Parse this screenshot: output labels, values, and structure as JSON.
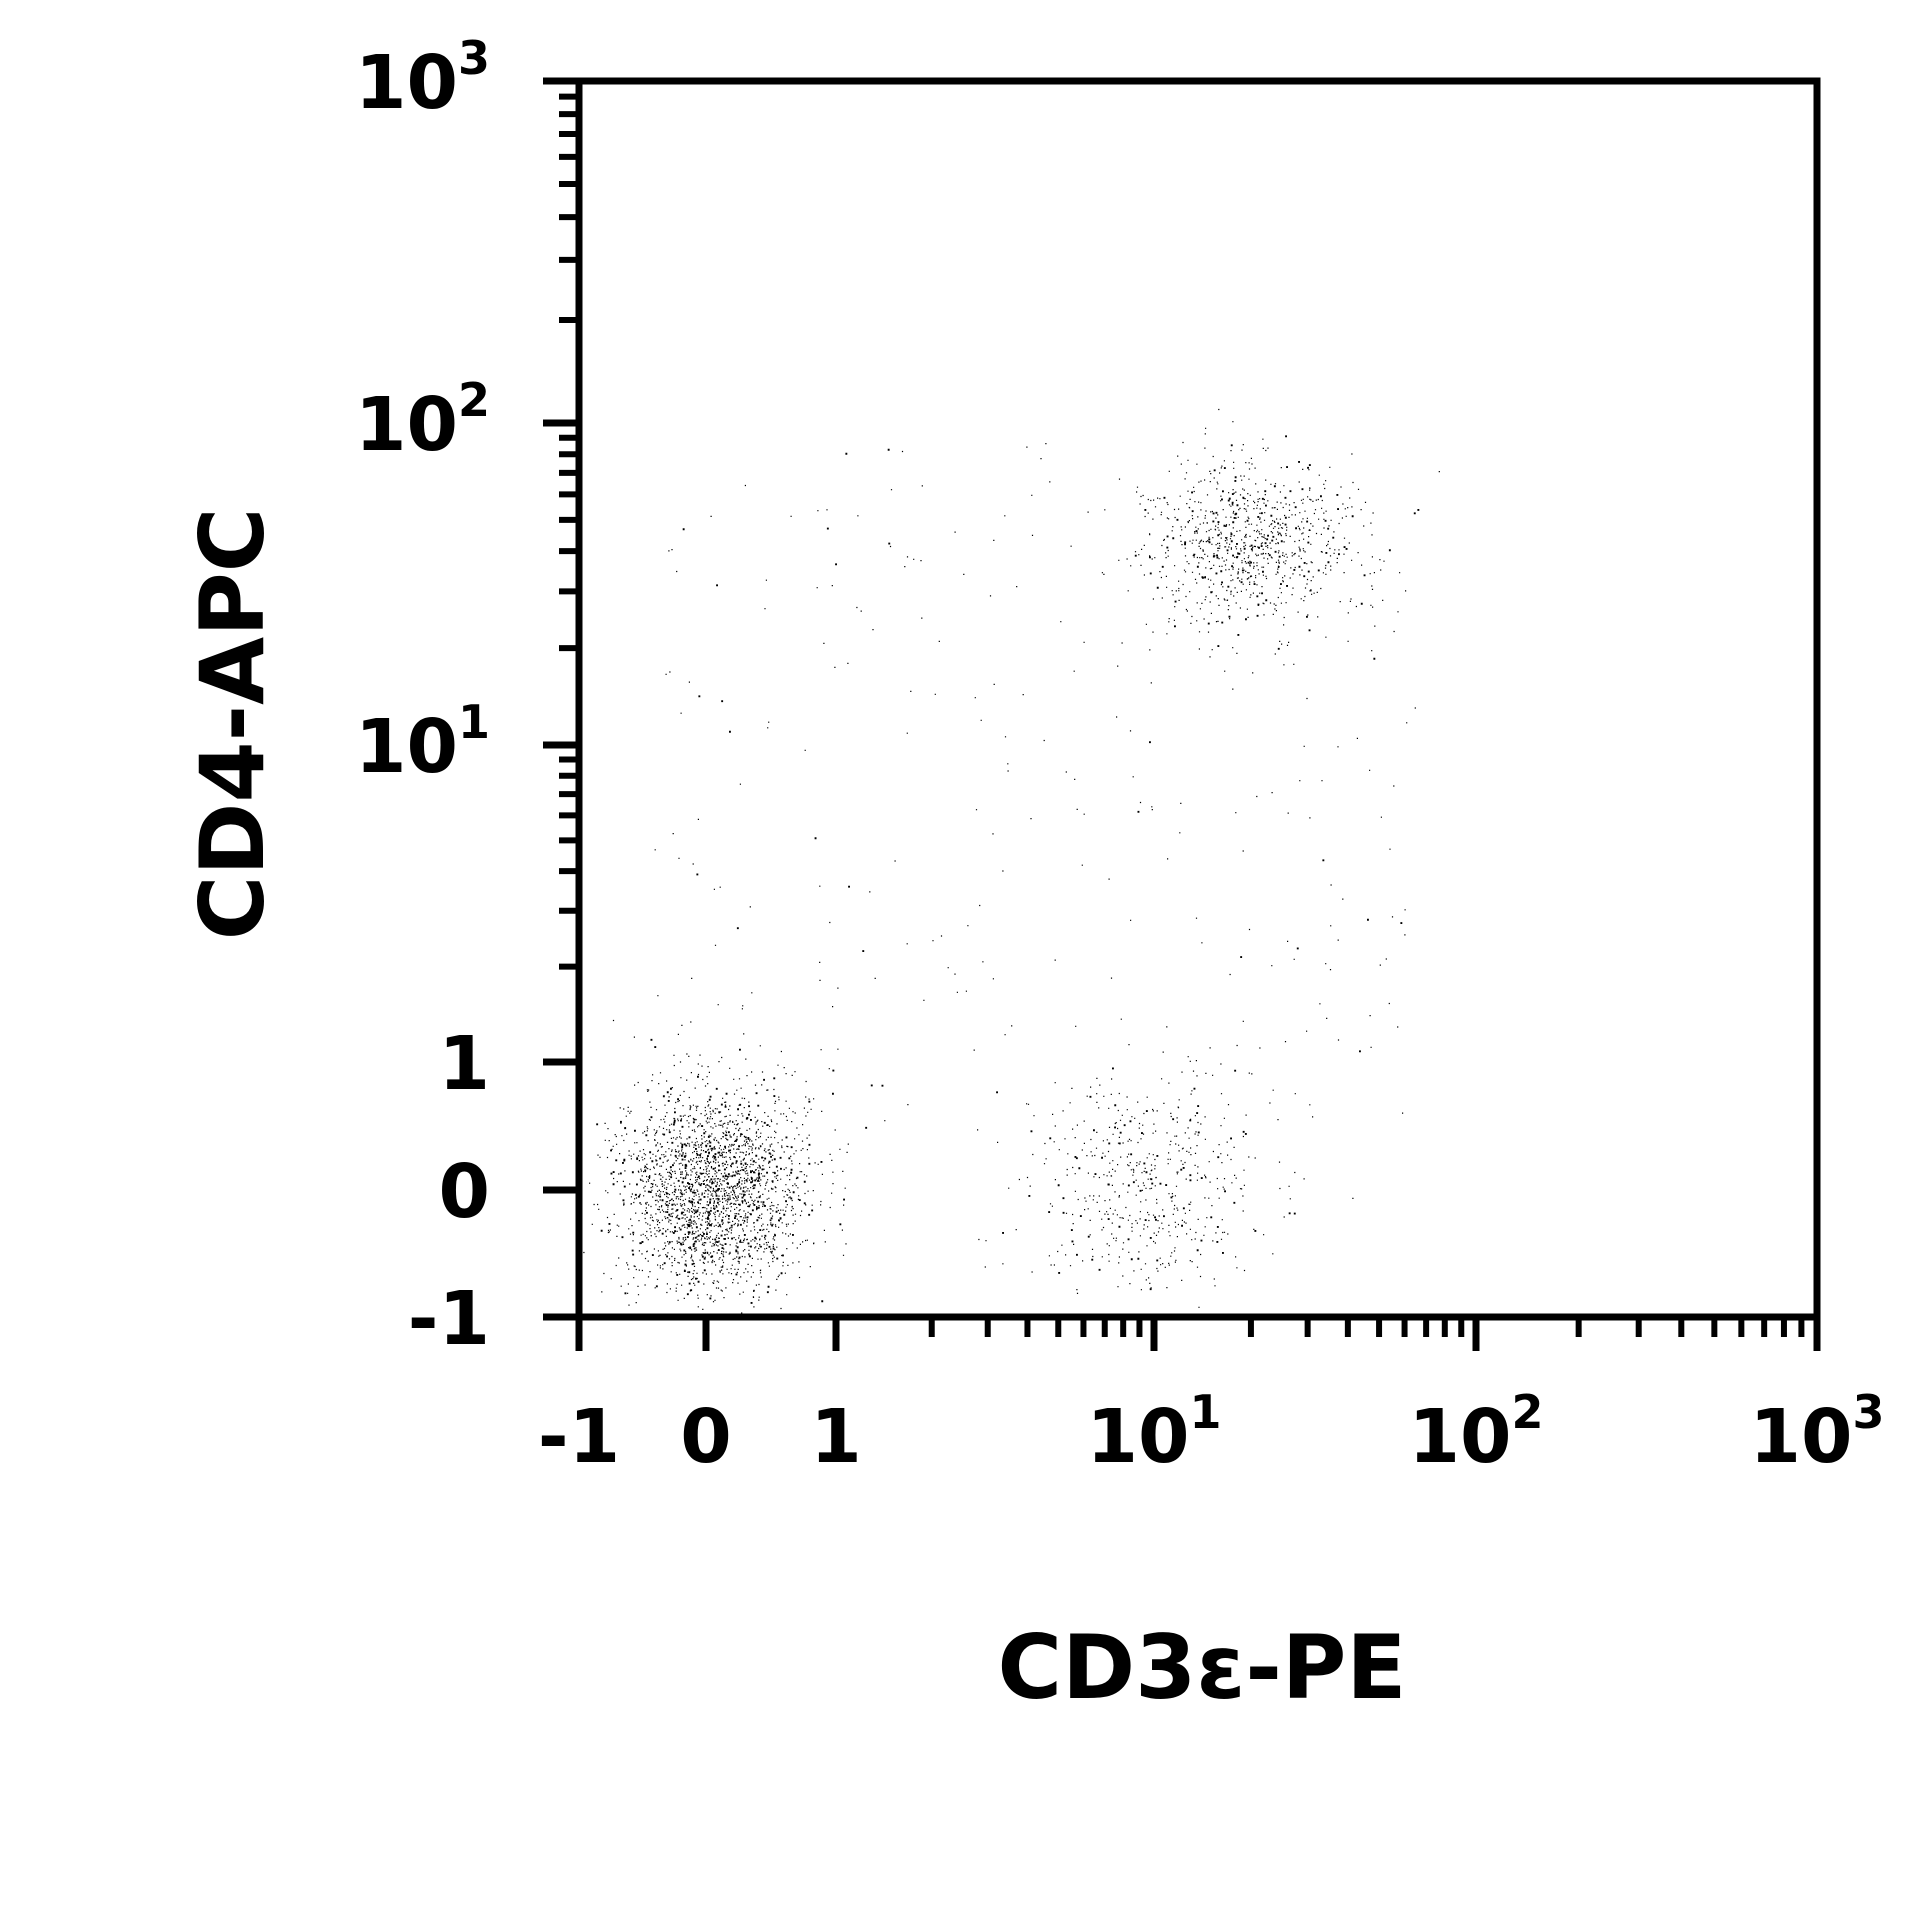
{
  "chart_data": {
    "type": "scatter",
    "xlabel": "CD3ε-PE",
    "ylabel": "CD4-APC",
    "x_scale": "biexponential",
    "y_scale": "biexponential",
    "xlim": [
      -1,
      1000
    ],
    "ylim": [
      -1,
      1000
    ],
    "grid": false,
    "legend": "none",
    "point_color": "#000000",
    "x_ticks": [
      {
        "value": -1,
        "base": "-1",
        "exp": ""
      },
      {
        "value": 0,
        "base": "0",
        "exp": ""
      },
      {
        "value": 1,
        "base": "1",
        "exp": ""
      },
      {
        "value": 10,
        "base": "10",
        "exp": "1"
      },
      {
        "value": 100,
        "base": "10",
        "exp": "2"
      },
      {
        "value": 1000,
        "base": "10",
        "exp": "3"
      }
    ],
    "y_ticks": [
      {
        "value": -1,
        "base": "-1",
        "exp": ""
      },
      {
        "value": 0,
        "base": "0",
        "exp": ""
      },
      {
        "value": 1,
        "base": "1",
        "exp": ""
      },
      {
        "value": 10,
        "base": "10",
        "exp": "1"
      },
      {
        "value": 100,
        "base": "10",
        "exp": "2"
      },
      {
        "value": 1000,
        "base": "10",
        "exp": "3"
      }
    ],
    "populations": [
      {
        "x_center": 0.05,
        "y_center": 0.0,
        "approx_events": 2400
      },
      {
        "x_center": 9.5,
        "y_center": 0.05,
        "approx_events": 550
      },
      {
        "x_center": 20,
        "y_center": 42,
        "approx_events": 900
      },
      {
        "x_center": 2,
        "y_center": 5,
        "approx_events": 260
      }
    ]
  }
}
